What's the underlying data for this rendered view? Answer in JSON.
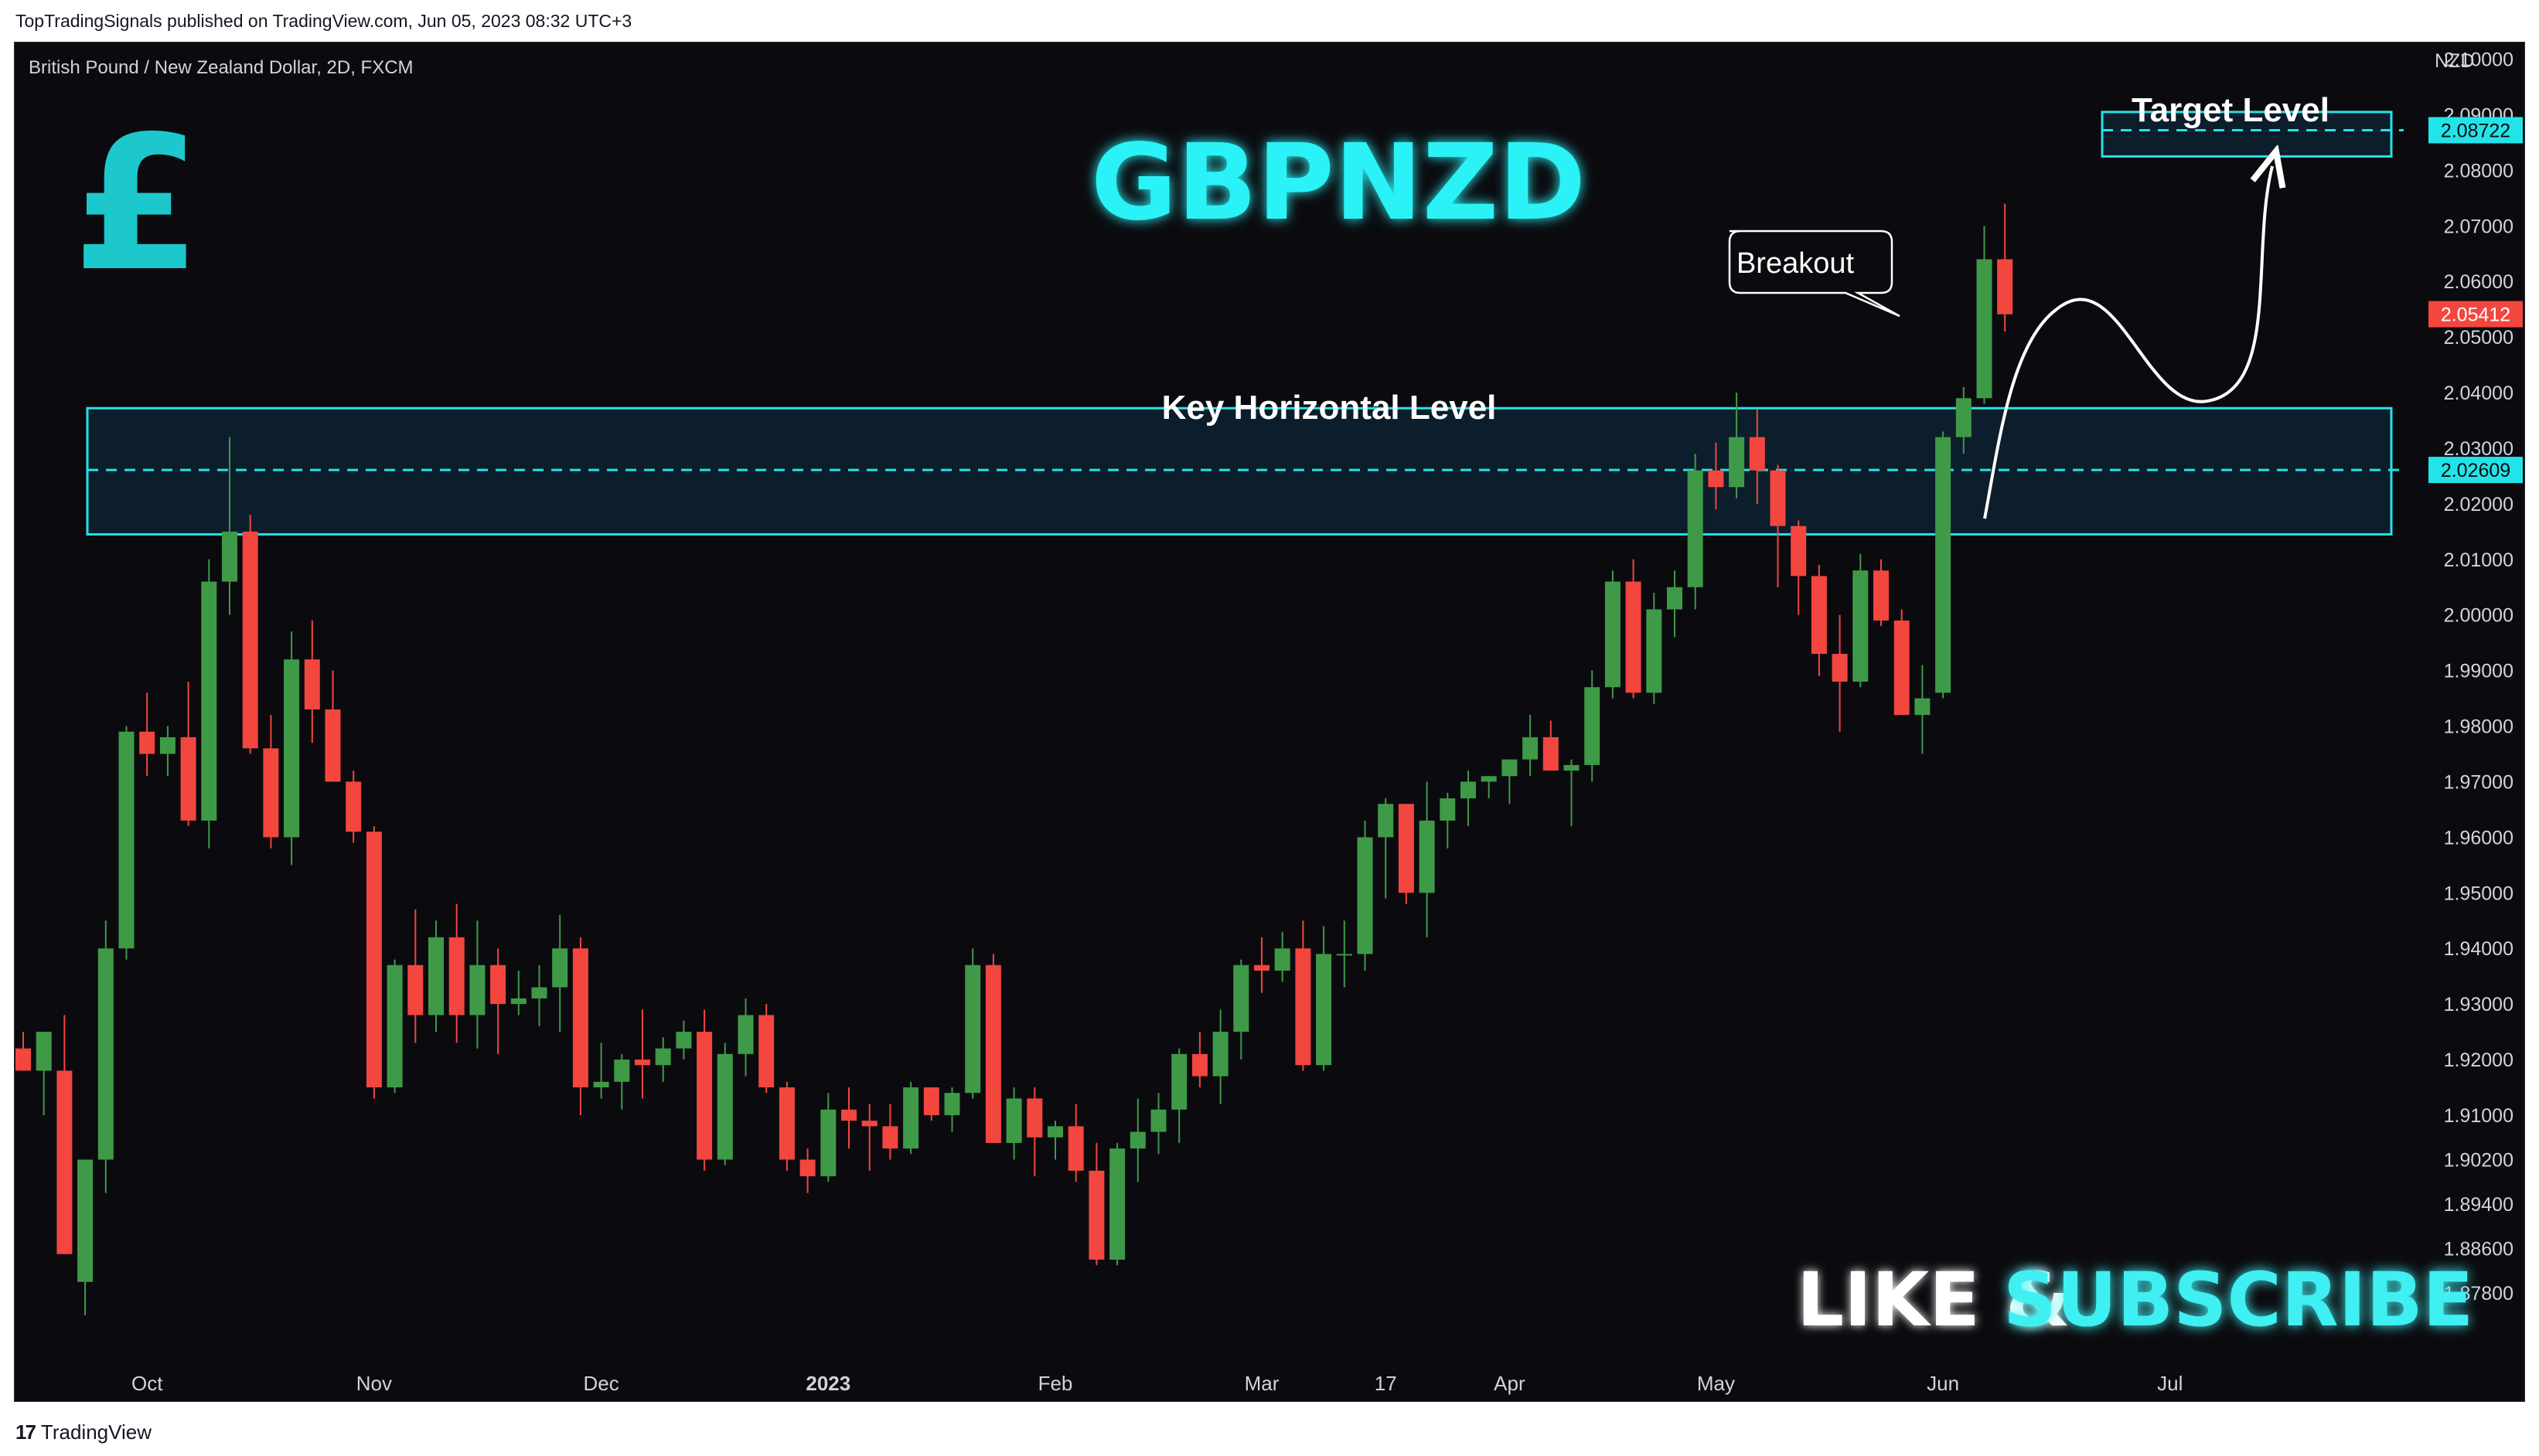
{
  "header": {
    "published": "TopTradingSignals published on TradingView.com, Jun 05, 2023 08:32 UTC+3"
  },
  "footer": {
    "brand": "TradingView",
    "logo_glyph": "17"
  },
  "chart_header": {
    "symbol_line": "British Pound / New Zealand Dollar, 2D, FXCM",
    "currency": "NZD"
  },
  "overlay": {
    "title": "GBPNZD",
    "pound_glyph": "£",
    "key_level_label": "Key Horizontal Level",
    "target_label": "Target Level",
    "breakout_label": "Breakout",
    "cta_like": "LIKE &",
    "cta_subscribe": "SUBSCRIBE"
  },
  "colors": {
    "up": "#3f9a48",
    "down": "#f2463f",
    "accent": "#22e4e8",
    "zone_fill": "#0d2230",
    "background": "#0b0b0f",
    "price_tag": "#f2463f"
  },
  "chart_data": {
    "type": "candlestick",
    "title": "British Pound / New Zealand Dollar, 2D, FXCM",
    "ylim": [
      1.868,
      2.103
    ],
    "y_ticks": [
      "2.10000",
      "2.09000",
      "2.08000",
      "2.07000",
      "2.06000",
      "2.05000",
      "2.04000",
      "2.03000",
      "2.02000",
      "2.01000",
      "2.00000",
      "1.99000",
      "1.98000",
      "1.97000",
      "1.96000",
      "1.95000",
      "1.94000",
      "1.93000",
      "1.92000",
      "1.91000",
      "1.90200",
      "1.89400",
      "1.88600",
      "1.87800"
    ],
    "x_ticks": [
      {
        "label": "Oct",
        "idx": 6,
        "bold": false
      },
      {
        "label": "Nov",
        "idx": 17,
        "bold": false
      },
      {
        "label": "Dec",
        "idx": 28,
        "bold": false
      },
      {
        "label": "2023",
        "idx": 39,
        "bold": true
      },
      {
        "label": "Feb",
        "idx": 50,
        "bold": false
      },
      {
        "label": "Mar",
        "idx": 60,
        "bold": false
      },
      {
        "label": "17",
        "idx": 66,
        "bold": false
      },
      {
        "label": "Apr",
        "idx": 72,
        "bold": false
      },
      {
        "label": "May",
        "idx": 82,
        "bold": false
      },
      {
        "label": "Jun",
        "idx": 93,
        "bold": false
      },
      {
        "label": "Jul",
        "idx": 104,
        "bold": false
      }
    ],
    "key_level": {
      "low": 2.0145,
      "high": 2.0372,
      "price": 2.02609,
      "price_label": "2.02609"
    },
    "target_level": {
      "low": 2.0825,
      "high": 2.0905,
      "price": 2.08722,
      "price_label": "2.08722"
    },
    "last_price": {
      "value": 2.05412,
      "label": "2.05412"
    },
    "candles": [
      [
        1.922,
        1.925,
        1.918,
        1.918
      ],
      [
        1.918,
        1.925,
        1.91,
        1.925
      ],
      [
        1.918,
        1.928,
        1.885,
        1.885
      ],
      [
        1.88,
        1.902,
        1.874,
        1.902
      ],
      [
        1.902,
        1.945,
        1.896,
        1.94
      ],
      [
        1.94,
        1.98,
        1.938,
        1.979
      ],
      [
        1.979,
        1.986,
        1.971,
        1.975
      ],
      [
        1.975,
        1.98,
        1.971,
        1.978
      ],
      [
        1.978,
        1.988,
        1.962,
        1.963
      ],
      [
        1.963,
        2.01,
        1.958,
        2.006
      ],
      [
        2.006,
        2.032,
        2.0,
        2.015
      ],
      [
        2.015,
        2.018,
        1.975,
        1.976
      ],
      [
        1.976,
        1.982,
        1.958,
        1.96
      ],
      [
        1.96,
        1.997,
        1.955,
        1.992
      ],
      [
        1.992,
        1.999,
        1.977,
        1.983
      ],
      [
        1.983,
        1.99,
        1.97,
        1.97
      ],
      [
        1.97,
        1.972,
        1.959,
        1.961
      ],
      [
        1.961,
        1.962,
        1.913,
        1.915
      ],
      [
        1.915,
        1.938,
        1.914,
        1.937
      ],
      [
        1.937,
        1.947,
        1.923,
        1.928
      ],
      [
        1.928,
        1.945,
        1.925,
        1.942
      ],
      [
        1.942,
        1.948,
        1.923,
        1.928
      ],
      [
        1.928,
        1.945,
        1.922,
        1.937
      ],
      [
        1.937,
        1.94,
        1.921,
        1.93
      ],
      [
        1.93,
        1.936,
        1.928,
        1.931
      ],
      [
        1.931,
        1.937,
        1.926,
        1.933
      ],
      [
        1.933,
        1.946,
        1.925,
        1.94
      ],
      [
        1.94,
        1.942,
        1.91,
        1.915
      ],
      [
        1.915,
        1.923,
        1.913,
        1.916
      ],
      [
        1.916,
        1.921,
        1.911,
        1.92
      ],
      [
        1.92,
        1.929,
        1.913,
        1.919
      ],
      [
        1.919,
        1.924,
        1.916,
        1.922
      ],
      [
        1.922,
        1.927,
        1.92,
        1.925
      ],
      [
        1.925,
        1.929,
        1.9,
        1.902
      ],
      [
        1.902,
        1.923,
        1.901,
        1.921
      ],
      [
        1.921,
        1.931,
        1.917,
        1.928
      ],
      [
        1.928,
        1.93,
        1.914,
        1.915
      ],
      [
        1.915,
        1.916,
        1.9,
        1.902
      ],
      [
        1.902,
        1.904,
        1.896,
        1.899
      ],
      [
        1.899,
        1.914,
        1.898,
        1.911
      ],
      [
        1.911,
        1.915,
        1.904,
        1.909
      ],
      [
        1.909,
        1.912,
        1.9,
        1.908
      ],
      [
        1.908,
        1.912,
        1.902,
        1.904
      ],
      [
        1.904,
        1.916,
        1.903,
        1.915
      ],
      [
        1.915,
        1.915,
        1.909,
        1.91
      ],
      [
        1.91,
        1.915,
        1.907,
        1.914
      ],
      [
        1.914,
        1.94,
        1.913,
        1.937
      ],
      [
        1.937,
        1.939,
        1.905,
        1.905
      ],
      [
        1.905,
        1.915,
        1.902,
        1.913
      ],
      [
        1.913,
        1.915,
        1.899,
        1.906
      ],
      [
        1.906,
        1.909,
        1.902,
        1.908
      ],
      [
        1.908,
        1.912,
        1.898,
        1.9
      ],
      [
        1.9,
        1.905,
        1.883,
        1.884
      ],
      [
        1.884,
        1.905,
        1.883,
        1.904
      ],
      [
        1.904,
        1.913,
        1.898,
        1.907
      ],
      [
        1.907,
        1.914,
        1.903,
        1.911
      ],
      [
        1.911,
        1.922,
        1.905,
        1.921
      ],
      [
        1.921,
        1.925,
        1.915,
        1.917
      ],
      [
        1.917,
        1.929,
        1.912,
        1.925
      ],
      [
        1.925,
        1.938,
        1.92,
        1.937
      ],
      [
        1.937,
        1.942,
        1.932,
        1.936
      ],
      [
        1.936,
        1.943,
        1.934,
        1.94
      ],
      [
        1.94,
        1.945,
        1.918,
        1.919
      ],
      [
        1.919,
        1.944,
        1.918,
        1.939
      ],
      [
        1.939,
        1.945,
        1.933,
        1.939
      ],
      [
        1.939,
        1.963,
        1.936,
        1.96
      ],
      [
        1.96,
        1.967,
        1.949,
        1.966
      ],
      [
        1.966,
        1.966,
        1.948,
        1.95
      ],
      [
        1.95,
        1.97,
        1.942,
        1.963
      ],
      [
        1.963,
        1.968,
        1.958,
        1.967
      ],
      [
        1.967,
        1.972,
        1.962,
        1.97
      ],
      [
        1.97,
        1.971,
        1.967,
        1.971
      ],
      [
        1.971,
        1.974,
        1.966,
        1.974
      ],
      [
        1.974,
        1.982,
        1.971,
        1.978
      ],
      [
        1.978,
        1.981,
        1.972,
        1.972
      ],
      [
        1.972,
        1.974,
        1.962,
        1.973
      ],
      [
        1.973,
        1.99,
        1.97,
        1.987
      ],
      [
        1.987,
        2.008,
        1.985,
        2.006
      ],
      [
        2.006,
        2.01,
        1.985,
        1.986
      ],
      [
        1.986,
        2.004,
        1.984,
        2.001
      ],
      [
        2.001,
        2.008,
        1.996,
        2.005
      ],
      [
        2.005,
        2.029,
        2.001,
        2.026
      ],
      [
        2.026,
        2.031,
        2.019,
        2.023
      ],
      [
        2.023,
        2.04,
        2.021,
        2.032
      ],
      [
        2.032,
        2.037,
        2.02,
        2.026
      ],
      [
        2.026,
        2.027,
        2.005,
        2.016
      ],
      [
        2.016,
        2.017,
        2.0,
        2.007
      ],
      [
        2.007,
        2.009,
        1.989,
        1.993
      ],
      [
        1.993,
        2.0,
        1.979,
        1.988
      ],
      [
        1.988,
        2.011,
        1.987,
        2.008
      ],
      [
        2.008,
        2.01,
        1.998,
        1.999
      ],
      [
        1.999,
        2.001,
        1.982,
        1.982
      ],
      [
        1.982,
        1.991,
        1.975,
        1.985
      ],
      [
        1.986,
        2.033,
        1.985,
        2.032
      ],
      [
        2.032,
        2.041,
        2.029,
        2.039
      ],
      [
        2.039,
        2.07,
        2.038,
        2.064
      ],
      [
        2.064,
        2.074,
        2.051,
        2.0541
      ]
    ]
  }
}
